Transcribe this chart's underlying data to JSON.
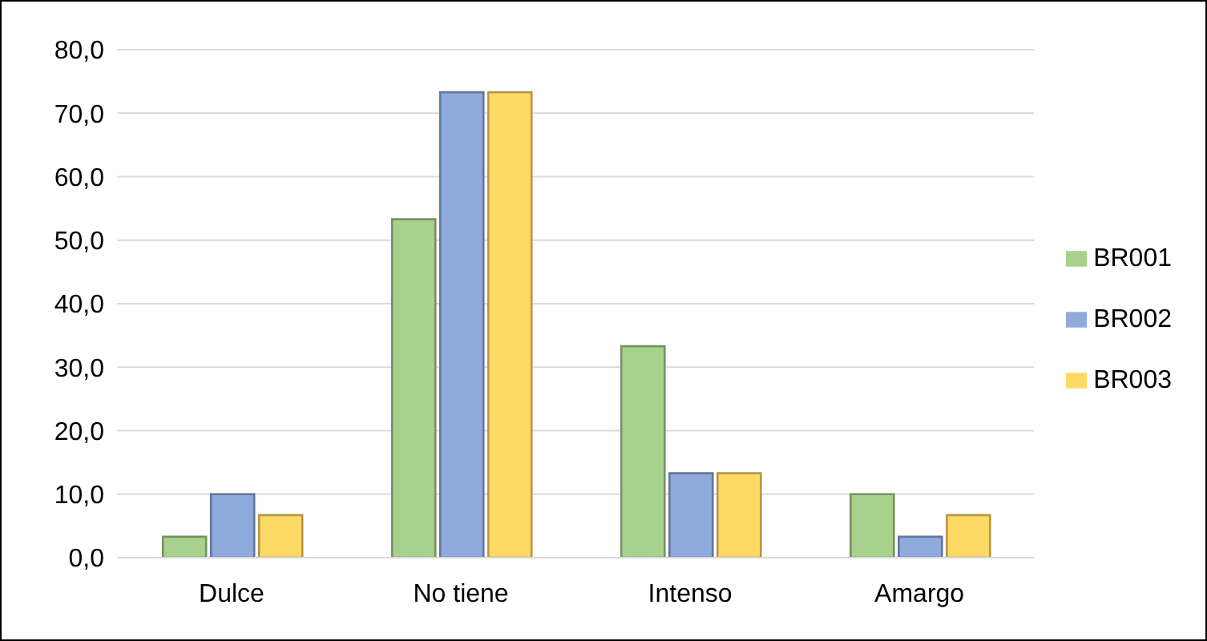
{
  "chart_data": {
    "type": "bar",
    "categories": [
      "Dulce",
      "No tiene",
      "Intenso",
      "Amargo"
    ],
    "series": [
      {
        "name": "BR001",
        "color": "#a9d18e",
        "values": [
          3.3,
          53.3,
          33.3,
          10.0
        ]
      },
      {
        "name": "BR002",
        "color": "#8faadc",
        "values": [
          10.0,
          73.3,
          13.3,
          3.3
        ]
      },
      {
        "name": "BR003",
        "color": "#ffd966",
        "values": [
          6.7,
          73.3,
          13.3,
          6.7
        ]
      }
    ],
    "ylim": [
      0,
      80
    ],
    "yticks": [
      {
        "value": 0,
        "label": "0,0"
      },
      {
        "value": 10,
        "label": "10,0"
      },
      {
        "value": 20,
        "label": "20,0"
      },
      {
        "value": 30,
        "label": "30,0"
      },
      {
        "value": 40,
        "label": "40,0"
      },
      {
        "value": 50,
        "label": "50,0"
      },
      {
        "value": 60,
        "label": "60,0"
      },
      {
        "value": 70,
        "label": "70,0"
      },
      {
        "value": 80,
        "label": "80,0"
      }
    ],
    "grid": "y",
    "legend": "right"
  }
}
